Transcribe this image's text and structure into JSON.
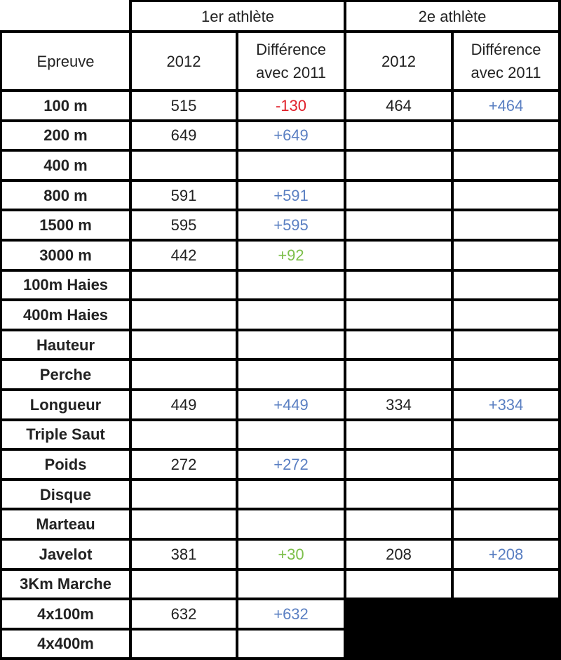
{
  "header": {
    "group1": "1er athlète",
    "group2": "2e athlète",
    "event": "Epreuve",
    "year": "2012",
    "diff": "Différence avec 2011"
  },
  "colors": {
    "negative": "#e0202a",
    "positive_new": "#5a7fc2",
    "positive_gain": "#7cbf4a"
  },
  "rows": [
    {
      "event": "100 m",
      "a1": "515",
      "d1": "-130",
      "d1c": "red",
      "a2": "464",
      "d2": "+464",
      "d2c": "blue"
    },
    {
      "event": "200 m",
      "a1": "649",
      "d1": "+649",
      "d1c": "blue",
      "a2": "",
      "d2": "",
      "d2c": ""
    },
    {
      "event": "400 m",
      "a1": "",
      "d1": "",
      "d1c": "",
      "a2": "",
      "d2": "",
      "d2c": ""
    },
    {
      "event": "800 m",
      "a1": "591",
      "d1": "+591",
      "d1c": "blue",
      "a2": "",
      "d2": "",
      "d2c": ""
    },
    {
      "event": "1500 m",
      "a1": "595",
      "d1": "+595",
      "d1c": "blue",
      "a2": "",
      "d2": "",
      "d2c": ""
    },
    {
      "event": "3000 m",
      "a1": "442",
      "d1": "+92",
      "d1c": "green",
      "a2": "",
      "d2": "",
      "d2c": ""
    },
    {
      "event": "100m Haies",
      "a1": "",
      "d1": "",
      "d1c": "",
      "a2": "",
      "d2": "",
      "d2c": ""
    },
    {
      "event": "400m Haies",
      "a1": "",
      "d1": "",
      "d1c": "",
      "a2": "",
      "d2": "",
      "d2c": ""
    },
    {
      "event": "Hauteur",
      "a1": "",
      "d1": "",
      "d1c": "",
      "a2": "",
      "d2": "",
      "d2c": ""
    },
    {
      "event": "Perche",
      "a1": "",
      "d1": "",
      "d1c": "",
      "a2": "",
      "d2": "",
      "d2c": ""
    },
    {
      "event": "Longueur",
      "a1": "449",
      "d1": "+449",
      "d1c": "blue",
      "a2": "334",
      "d2": "+334",
      "d2c": "blue"
    },
    {
      "event": "Triple Saut",
      "a1": "",
      "d1": "",
      "d1c": "",
      "a2": "",
      "d2": "",
      "d2c": ""
    },
    {
      "event": "Poids",
      "a1": "272",
      "d1": "+272",
      "d1c": "blue",
      "a2": "",
      "d2": "",
      "d2c": ""
    },
    {
      "event": "Disque",
      "a1": "",
      "d1": "",
      "d1c": "",
      "a2": "",
      "d2": "",
      "d2c": ""
    },
    {
      "event": "Marteau",
      "a1": "",
      "d1": "",
      "d1c": "",
      "a2": "",
      "d2": "",
      "d2c": ""
    },
    {
      "event": "Javelot",
      "a1": "381",
      "d1": "+30",
      "d1c": "green",
      "a2": "208",
      "d2": "+208",
      "d2c": "blue"
    },
    {
      "event": "3Km Marche",
      "a1": "",
      "d1": "",
      "d1c": "",
      "a2": "",
      "d2": "",
      "d2c": ""
    },
    {
      "event": "4x100m",
      "a1": "632",
      "d1": "+632",
      "d1c": "blue",
      "a2": null,
      "d2": null,
      "d2c": ""
    },
    {
      "event": "4x400m",
      "a1": "",
      "d1": "",
      "d1c": "",
      "a2": null,
      "d2": null,
      "d2c": ""
    }
  ]
}
